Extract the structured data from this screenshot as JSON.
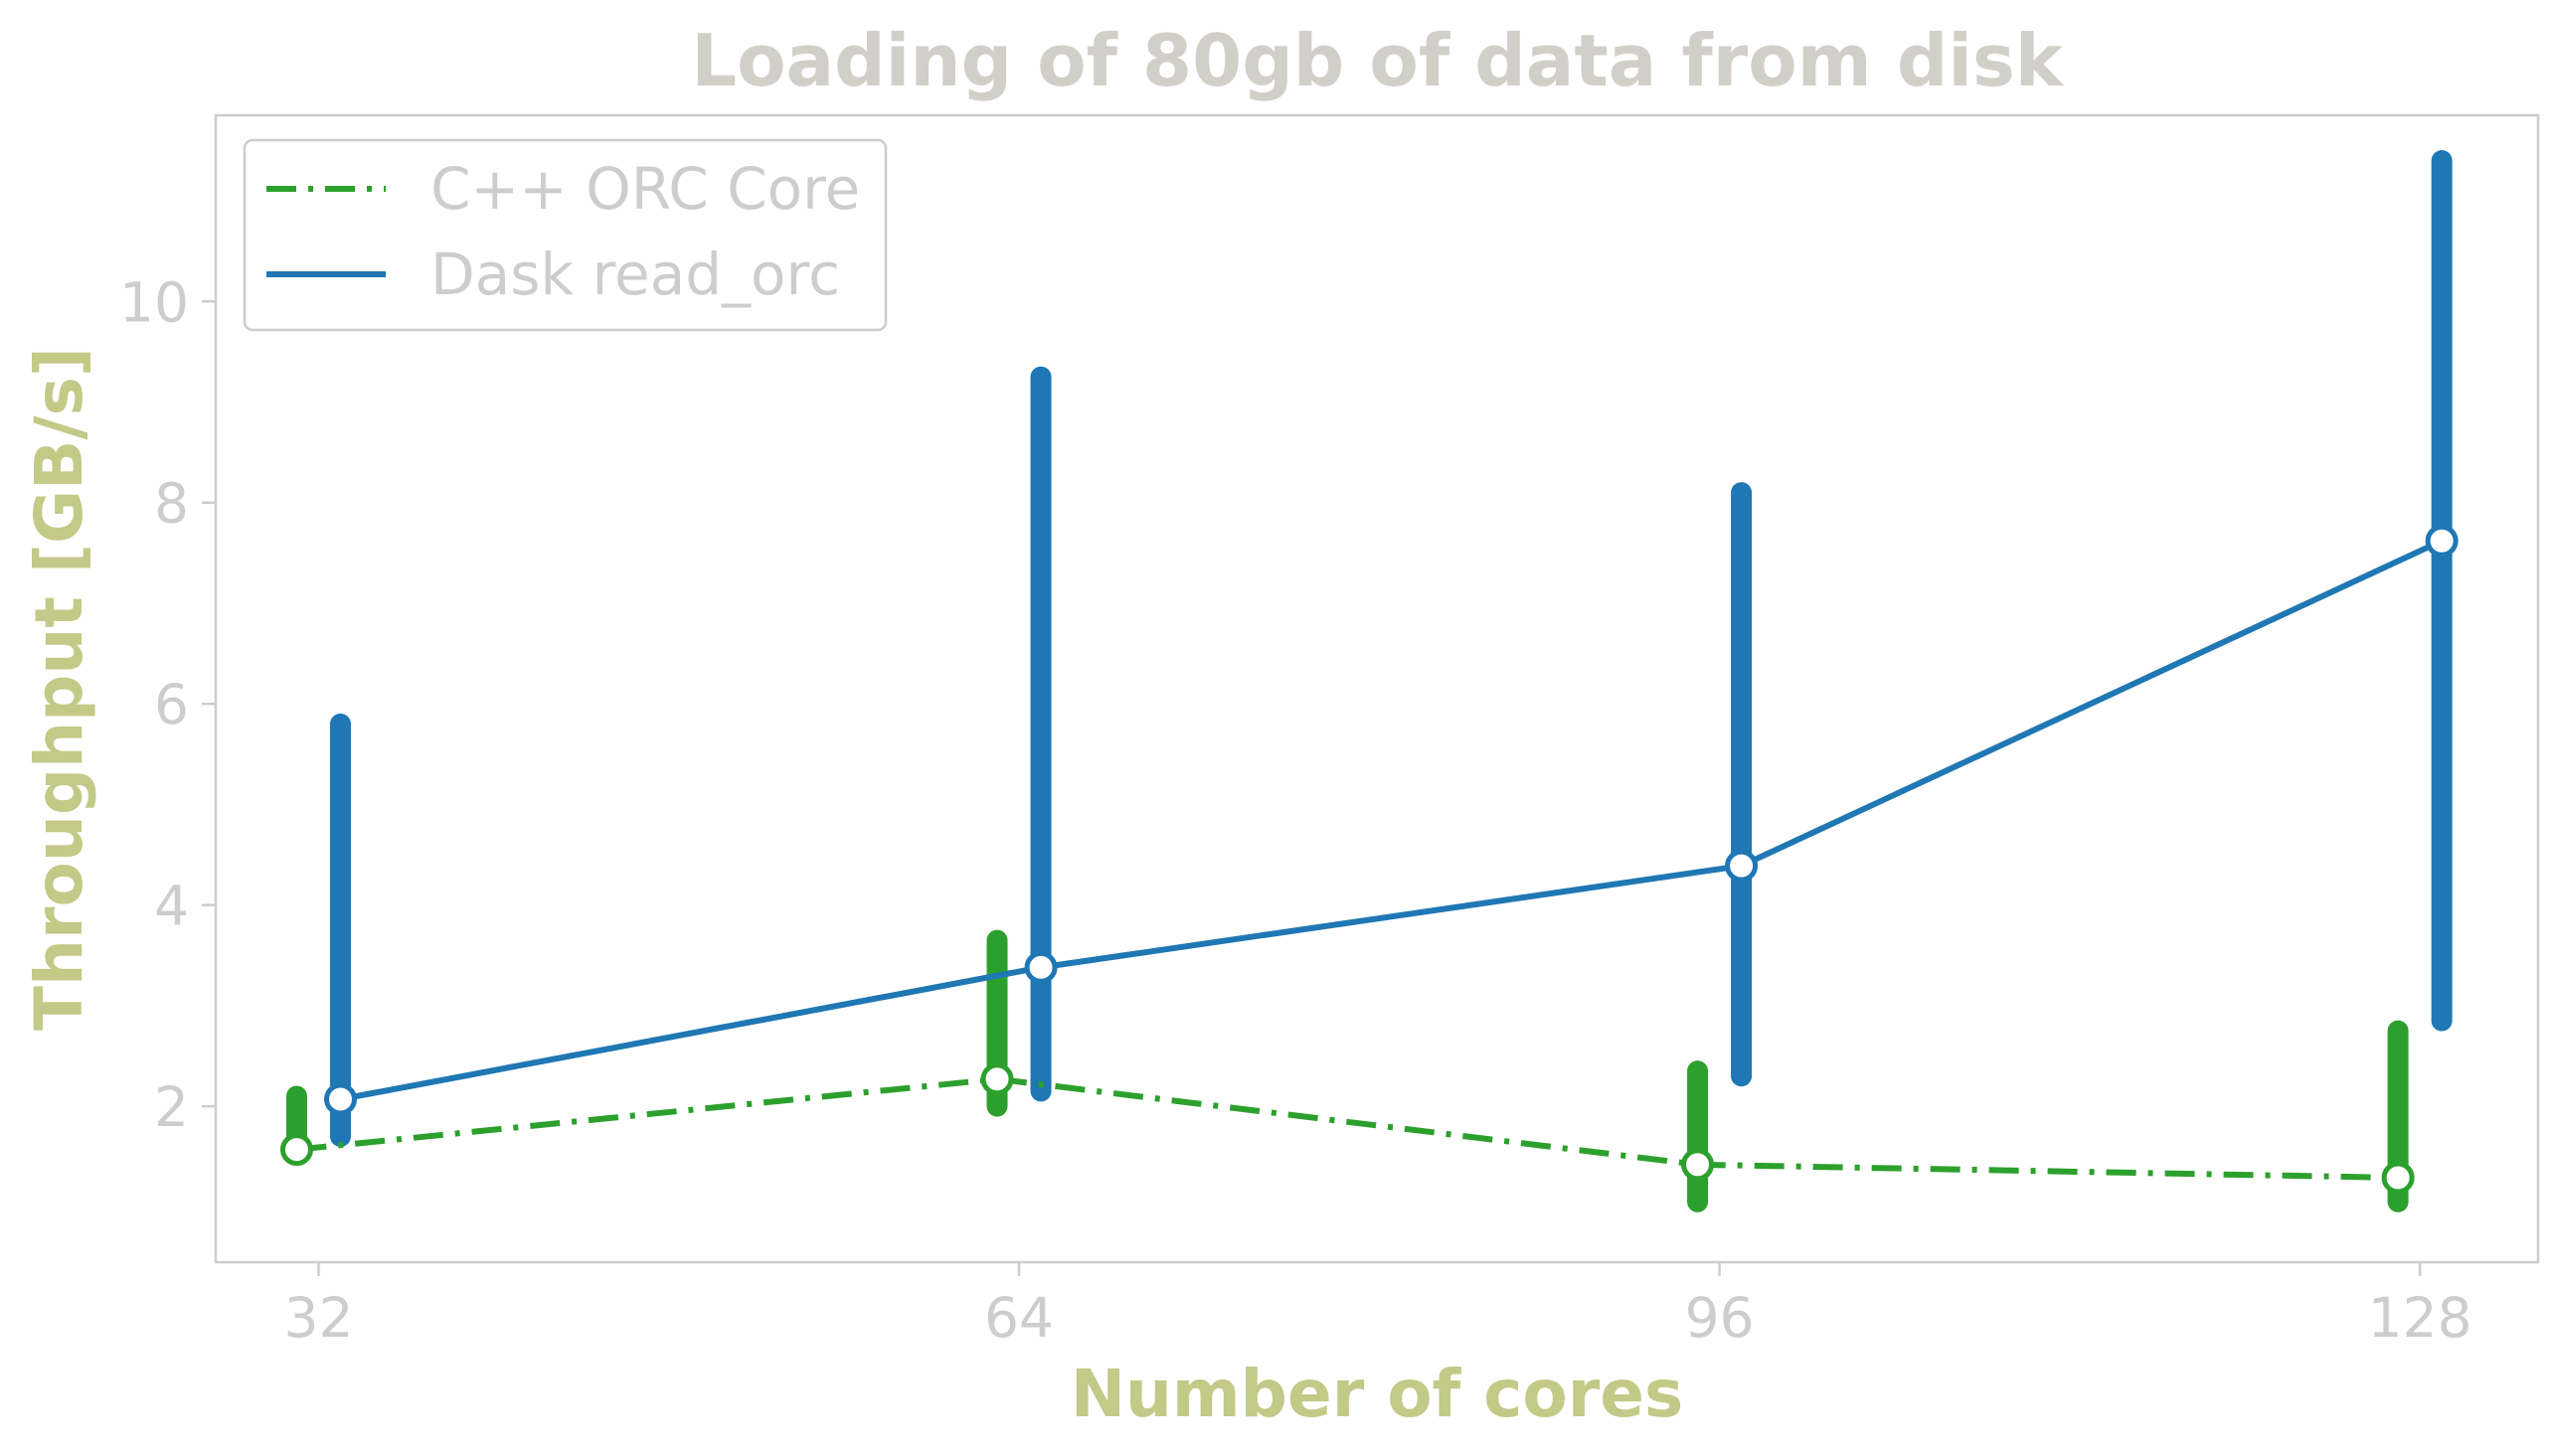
{
  "chart_data": {
    "type": "line",
    "title": "Loading of 80gb of data from disk",
    "xlabel": "Number of cores",
    "ylabel": "Throughput [GB/s]",
    "x": [
      32,
      64,
      96,
      128
    ],
    "xlim": [
      27.3,
      133.4
    ],
    "ylim": [
      0.45,
      11.85
    ],
    "xticks": [
      "32",
      "64",
      "96",
      "128"
    ],
    "yticks": [
      2,
      4,
      6,
      8,
      10
    ],
    "grid": false,
    "legend_position": "top-left",
    "series": [
      {
        "name": "C++ ORC Core",
        "color": "#2ca02c",
        "line_style": "dash-dot",
        "x_offset": -1.0,
        "values": [
          1.57,
          2.27,
          1.42,
          1.29
        ],
        "ranges": [
          [
            1.6,
            2.1
          ],
          [
            2.0,
            3.65
          ],
          [
            1.05,
            2.35
          ],
          [
            1.05,
            2.75
          ]
        ]
      },
      {
        "name": "Dask read_orc",
        "color": "#1f77b4",
        "line_style": "solid",
        "x_offset": 1.0,
        "values": [
          2.07,
          3.38,
          4.39,
          7.62
        ],
        "ranges": [
          [
            1.7,
            5.8
          ],
          [
            2.15,
            9.25
          ],
          [
            2.3,
            8.1
          ],
          [
            2.85,
            11.4
          ]
        ]
      }
    ],
    "colors": {
      "title": "#d2cfc8",
      "axis_label": "#c3c986",
      "tick": "#cfcccc",
      "spine": "#cfcccc",
      "legend_text": "#cfcccc",
      "legend_border": "#cfcccc"
    }
  }
}
